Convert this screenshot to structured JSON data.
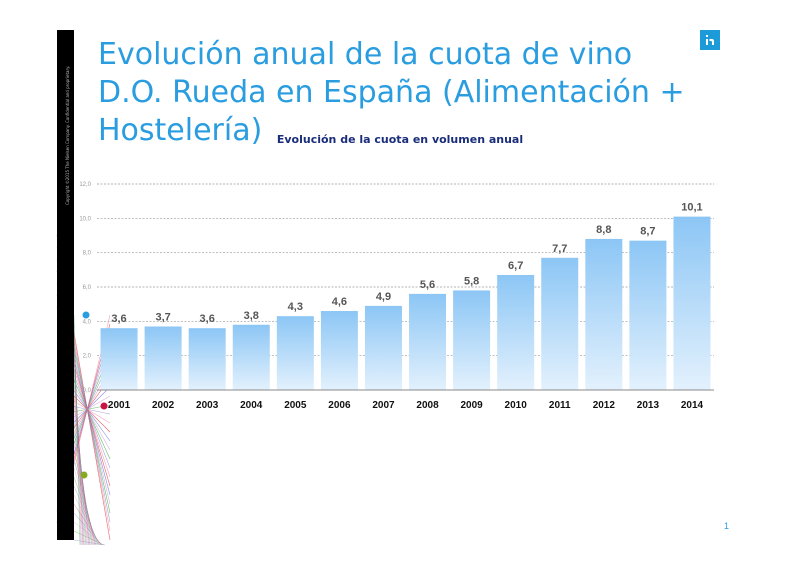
{
  "slide": {
    "title": "Evolución anual de la cuota de vino D.O. Rueda en España (Alimentación + Hostelería)",
    "copyright": "Copyright ©2015 The Nielsen Company. Confidential and proprietary.",
    "page_number": "1",
    "colors": {
      "title": "#2a9de0",
      "logo": "#1d9bd8",
      "strip": "#000000"
    },
    "logo_icon": "nielsen-logo-icon"
  },
  "chart_data": {
    "type": "bar",
    "title": "Evolución de la cuota en volumen anual",
    "categories": [
      "2001",
      "2002",
      "2003",
      "2004",
      "2005",
      "2006",
      "2007",
      "2008",
      "2009",
      "2010",
      "2011",
      "2012",
      "2013",
      "2014"
    ],
    "values": [
      3.6,
      3.7,
      3.6,
      3.8,
      4.3,
      4.6,
      4.9,
      5.6,
      5.8,
      6.7,
      7.7,
      8.8,
      8.7,
      10.1
    ],
    "value_labels": [
      "3,6",
      "3,7",
      "3,6",
      "3,8",
      "4,3",
      "4,6",
      "4,9",
      "5,6",
      "5,8",
      "6,7",
      "7,7",
      "8,8",
      "8,7",
      "10,1"
    ],
    "y_ticks": [
      0,
      2,
      4,
      6,
      8,
      10,
      12
    ],
    "y_tick_labels": [
      "0,0",
      "2,0",
      "4,0",
      "6,0",
      "8,0",
      "10,0",
      "12,0"
    ],
    "ylim": [
      0,
      12
    ],
    "xlabel": "",
    "ylabel": "",
    "grid": true,
    "colors": {
      "bar_top": "#8cc6f5",
      "bar_bottom": "#e3f1fd",
      "grid": "#9a9a9a",
      "label": "#555555"
    }
  }
}
